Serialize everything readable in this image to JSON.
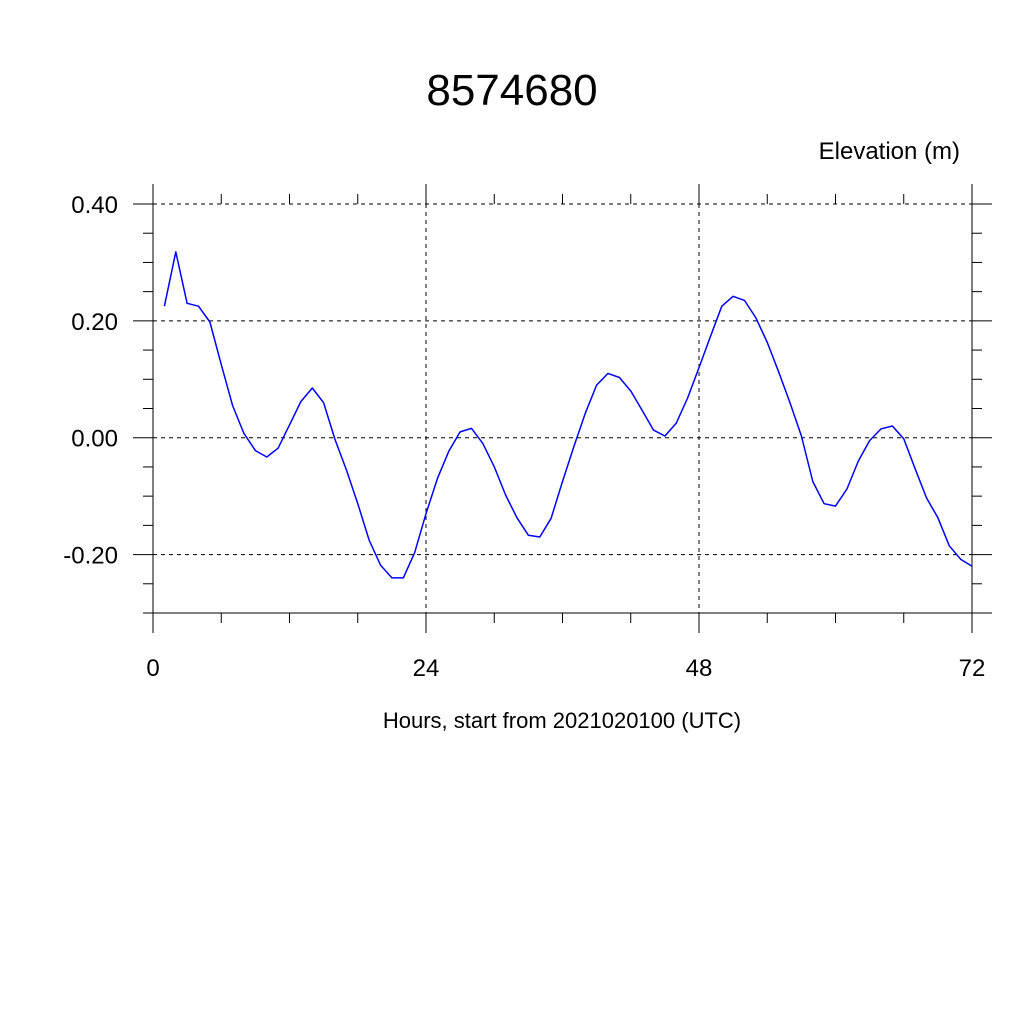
{
  "chart_data": {
    "type": "line",
    "title": "8574680",
    "ylabel": "Elevation (m)",
    "xlabel": "Hours, start from 2021020100 (UTC)",
    "xlim": [
      0,
      72
    ],
    "ylim": [
      -0.3,
      0.4
    ],
    "xticks": [
      0,
      24,
      48,
      72
    ],
    "xtick_labels": [
      "0",
      "24",
      "48",
      "72"
    ],
    "yticks": [
      -0.2,
      0.0,
      0.2,
      0.4
    ],
    "ytick_labels": [
      "-0.20",
      "0.00",
      "0.20",
      "0.40"
    ],
    "grid": true,
    "series": [
      {
        "color": "#0000ff",
        "x": [
          1,
          2,
          3,
          4,
          5,
          6,
          7,
          8,
          9,
          10,
          11,
          12,
          13,
          14,
          15,
          16,
          17,
          18,
          19,
          20,
          21,
          22,
          23,
          24,
          25,
          26,
          27,
          28,
          29,
          30,
          31,
          32,
          33,
          34,
          35,
          36,
          37,
          38,
          39,
          40,
          41,
          42,
          43,
          44,
          45,
          46,
          47,
          48,
          49,
          50,
          51,
          52,
          53,
          54,
          55,
          56,
          57,
          58,
          59,
          60,
          61,
          62,
          63,
          64,
          65,
          66,
          67,
          68,
          69,
          70,
          71,
          72
        ],
        "y": [
          0.225,
          0.318,
          0.23,
          0.225,
          0.198,
          0.125,
          0.055,
          0.007,
          -0.022,
          -0.033,
          -0.018,
          0.022,
          0.062,
          0.085,
          0.06,
          -0.003,
          -0.055,
          -0.113,
          -0.175,
          -0.218,
          -0.24,
          -0.24,
          -0.197,
          -0.13,
          -0.07,
          -0.023,
          0.01,
          0.016,
          -0.01,
          -0.05,
          -0.098,
          -0.137,
          -0.167,
          -0.17,
          -0.138,
          -0.075,
          -0.015,
          0.042,
          0.09,
          0.11,
          0.103,
          0.08,
          0.047,
          0.013,
          0.003,
          0.025,
          0.068,
          0.12,
          0.173,
          0.225,
          0.242,
          0.235,
          0.205,
          0.163,
          0.113,
          0.06,
          0.003,
          -0.075,
          -0.113,
          -0.117,
          -0.088,
          -0.04,
          -0.005,
          0.015,
          0.02,
          -0.002,
          -0.053,
          -0.103,
          -0.137,
          -0.185,
          -0.208,
          -0.22
        ]
      }
    ]
  }
}
